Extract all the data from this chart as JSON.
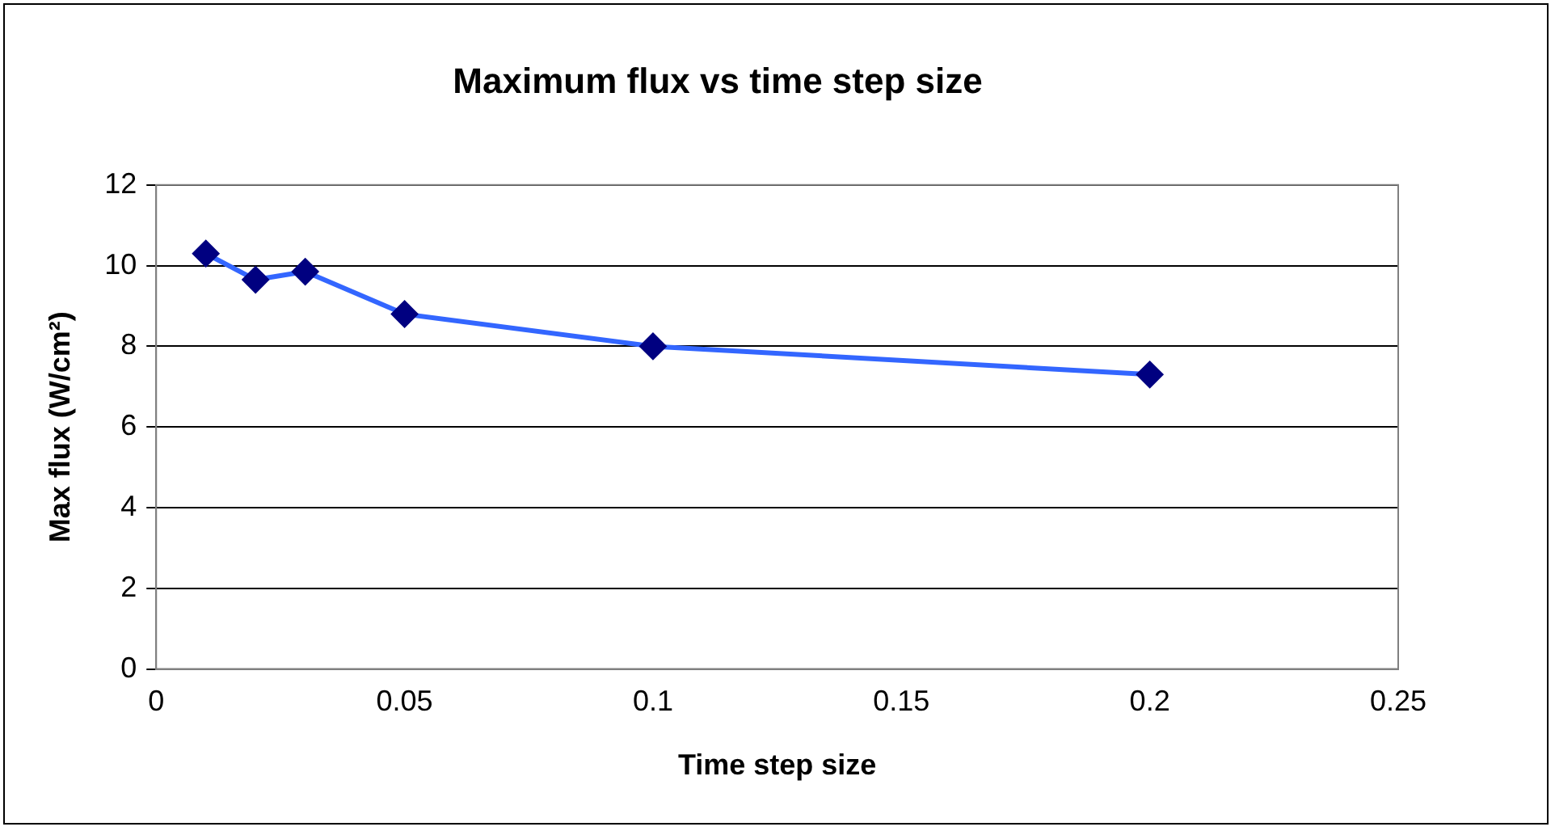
{
  "chart_data": {
    "type": "line",
    "title": "Maximum flux vs time step size",
    "xlabel": "Time step size",
    "ylabel": "Max flux (W/cm²)",
    "x": [
      0.01,
      0.02,
      0.03,
      0.05,
      0.1,
      0.2
    ],
    "series": [
      {
        "color": "#3366ff",
        "values": [
          10.3,
          9.65,
          9.85,
          8.8,
          8.0,
          7.3
        ]
      }
    ],
    "xlim": [
      0,
      0.25
    ],
    "xticks": [
      0,
      0.05,
      0.1,
      0.15,
      0.2,
      0.25
    ],
    "ylim": [
      0,
      12
    ],
    "yticks": [
      0,
      2,
      4,
      6,
      8,
      10,
      12
    ],
    "grid": "y",
    "legend": false,
    "marker": "diamond",
    "line_style": "solid"
  }
}
